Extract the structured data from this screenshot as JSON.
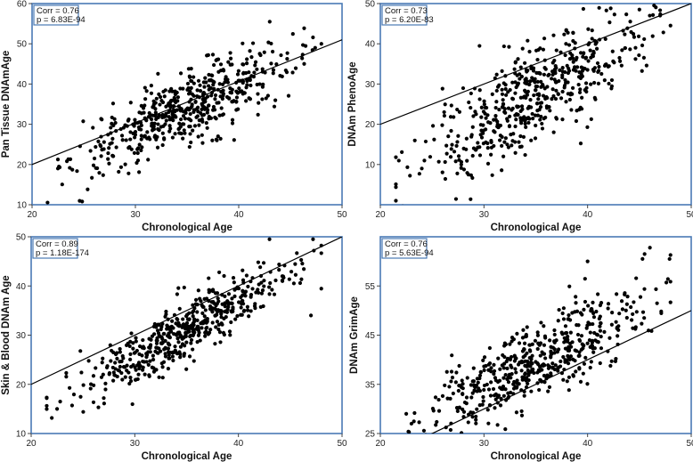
{
  "chart_data": [
    {
      "type": "scatter",
      "panel": "top-left",
      "xlabel": "Chronological Age",
      "ylabel": "Pan Tissue DNAmAge",
      "xlim": [
        20,
        50
      ],
      "ylim": [
        10,
        60
      ],
      "xticks": [
        20,
        30,
        40,
        50
      ],
      "yticks": [
        10,
        20,
        30,
        40,
        50,
        60
      ],
      "stats": {
        "corr": "Corr = 0.76",
        "p": "p = 6.83E-94"
      },
      "reference_line": {
        "x": [
          20,
          50
        ],
        "y": [
          20,
          51
        ]
      },
      "points": {
        "count": 520,
        "n": 520,
        "x_range": [
          21.5,
          48
        ],
        "mean_x": 35,
        "sd_x": 5.2,
        "intercept": -5.0,
        "slope": 1.12,
        "noise": 4.2,
        "extremes": [
          [
            22.5,
            19
          ],
          [
            22.6,
            19.5
          ],
          [
            43,
            55.5
          ],
          [
            38,
            27
          ],
          [
            47.4,
            49
          ]
        ]
      }
    },
    {
      "type": "scatter",
      "panel": "top-right",
      "xlabel": "Chronological Age",
      "ylabel": "DNAm PhenoAge",
      "xlim": [
        20,
        50
      ],
      "ylim": [
        0,
        50
      ],
      "xticks": [
        20,
        30,
        40,
        50
      ],
      "yticks": [
        10,
        20,
        30,
        40,
        50
      ],
      "stats": {
        "corr": "Corr = 0.73",
        "p": "p = 6.20E-83"
      },
      "reference_line": {
        "x": [
          20,
          50
        ],
        "y": [
          20,
          50
        ]
      },
      "points": {
        "count": 520,
        "n": 520,
        "x_range": [
          21.5,
          48
        ],
        "mean_x": 35,
        "sd_x": 5.2,
        "intercept": -23.0,
        "slope": 1.45,
        "noise": 6.2,
        "extremes": [
          [
            24,
            9
          ],
          [
            28.5,
            7.5
          ],
          [
            45,
            48.5
          ],
          [
            46,
            47
          ],
          [
            47,
            47
          ]
        ]
      }
    },
    {
      "type": "scatter",
      "panel": "bottom-left",
      "xlabel": "Chronological Age",
      "ylabel": "Skin & Blood DNAm Age",
      "xlim": [
        20,
        50
      ],
      "ylim": [
        10,
        50
      ],
      "xticks": [
        20,
        30,
        40,
        50
      ],
      "yticks": [
        10,
        20,
        30,
        40,
        50
      ],
      "stats": {
        "corr": "Corr = 0.89",
        "p": "p = 1.18E-174"
      },
      "reference_line": {
        "x": [
          20,
          50
        ],
        "y": [
          20,
          50
        ]
      },
      "points": {
        "count": 520,
        "n": 520,
        "x_range": [
          21.5,
          48
        ],
        "mean_x": 35,
        "sd_x": 5.2,
        "intercept": -11.0,
        "slope": 1.2,
        "noise": 3.0,
        "extremes": [
          [
            22.5,
            15
          ],
          [
            22.8,
            16.5
          ],
          [
            47.2,
            49.5
          ],
          [
            43,
            49.5
          ],
          [
            47,
            34
          ]
        ]
      }
    },
    {
      "type": "scatter",
      "panel": "bottom-right",
      "xlabel": "Chronological Age",
      "ylabel": "DNAm GrimAge",
      "xlim": [
        20,
        50
      ],
      "ylim": [
        25,
        65
      ],
      "xticks": [
        20,
        30,
        40,
        50
      ],
      "yticks": [
        25,
        35,
        45,
        55
      ],
      "stats": {
        "corr": "Corr = 0.76",
        "p": "p = 5.63E-94"
      },
      "reference_line": {
        "x": [
          24,
          50
        ],
        "y": [
          24,
          50
        ]
      },
      "points": {
        "count": 520,
        "n": 520,
        "x_range": [
          21.5,
          48
        ],
        "mean_x": 35,
        "sd_x": 5.2,
        "intercept": 2.0,
        "slope": 1.08,
        "noise": 4.0,
        "extremes": [
          [
            45.5,
            61.5
          ],
          [
            45.3,
            60.5
          ],
          [
            40,
            60
          ],
          [
            22.5,
            29
          ],
          [
            23,
            27
          ]
        ]
      }
    }
  ],
  "colors": {
    "frame": "#4a7ab5",
    "point": "#000000",
    "line": "#000000",
    "background": "#ffffff"
  }
}
